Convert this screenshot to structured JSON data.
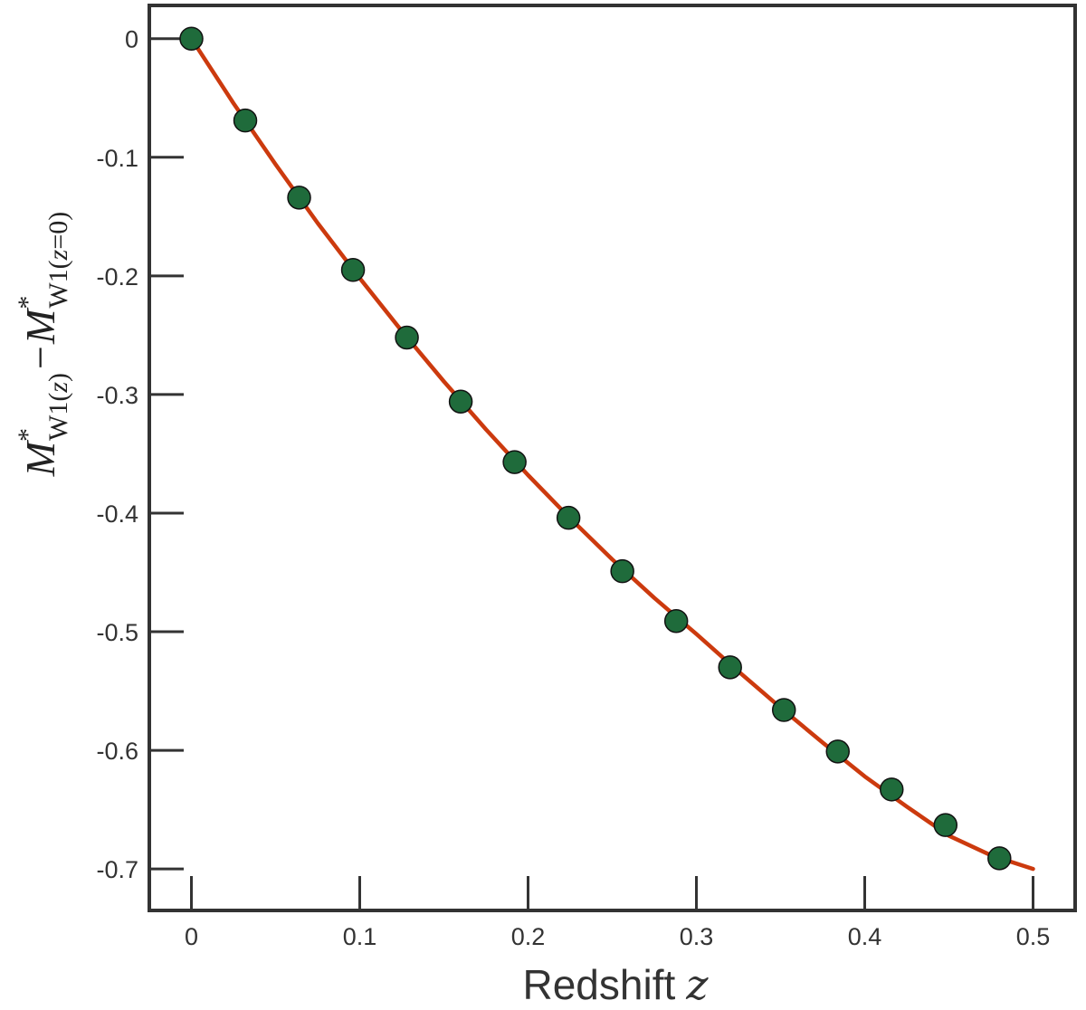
{
  "chart_data": {
    "type": "scatter",
    "xlabel_text": "Redshift",
    "xlabel_var": "z",
    "ylabel_parts": {
      "m1": "M",
      "star1": "*",
      "sub1_band": "W1",
      "sub1_open": "(",
      "sub1_var": "z",
      "sub1_close": ")",
      "minus": "−",
      "m2": "M",
      "star2": "*",
      "sub2_band": "W1",
      "sub2_open": "(",
      "sub2_var": "z",
      "sub2_eq": "=0",
      "sub2_close": ")"
    },
    "xlim": [
      -0.025,
      0.525
    ],
    "ylim": [
      -0.735,
      0.028
    ],
    "xticks": [
      0,
      0.1,
      0.2,
      0.3,
      0.4,
      0.5
    ],
    "xtick_labels": [
      "0",
      "0.1",
      "0.2",
      "0.3",
      "0.4",
      "0.5"
    ],
    "yticks": [
      0,
      -0.1,
      -0.2,
      -0.3,
      -0.4,
      -0.5,
      -0.6,
      -0.7
    ],
    "ytick_labels": [
      "0",
      "-0.1",
      "-0.2",
      "-0.3",
      "-0.4",
      "-0.5",
      "-0.6",
      "-0.7"
    ],
    "grid": false,
    "series": [
      {
        "kind": "scatter",
        "color": "#1f6b3b",
        "edge_color": "#111111",
        "x": [
          0,
          0.032,
          0.064,
          0.096,
          0.128,
          0.16,
          0.192,
          0.224,
          0.256,
          0.288,
          0.32,
          0.352,
          0.384,
          0.416,
          0.448,
          0.48
        ],
        "y": [
          0,
          -0.069,
          -0.134,
          -0.195,
          -0.252,
          -0.306,
          -0.357,
          -0.404,
          -0.449,
          -0.491,
          -0.53,
          -0.566,
          -0.601,
          -0.633,
          -0.663,
          -0.691
        ]
      },
      {
        "kind": "line",
        "color": "#cc3a0e",
        "x": [
          0,
          0.025,
          0.05,
          0.075,
          0.1,
          0.125,
          0.15,
          0.175,
          0.2,
          0.225,
          0.25,
          0.275,
          0.3,
          0.325,
          0.35,
          0.375,
          0.4,
          0.425,
          0.45,
          0.475,
          0.5
        ],
        "y": [
          0,
          -0.0545,
          -0.106,
          -0.1555,
          -0.202,
          -0.2465,
          -0.289,
          -0.3295,
          -0.368,
          -0.4045,
          -0.439,
          -0.4715,
          -0.502,
          -0.5335,
          -0.564,
          -0.5935,
          -0.622,
          -0.6475,
          -0.672,
          -0.6885,
          -0.7
        ]
      }
    ]
  }
}
